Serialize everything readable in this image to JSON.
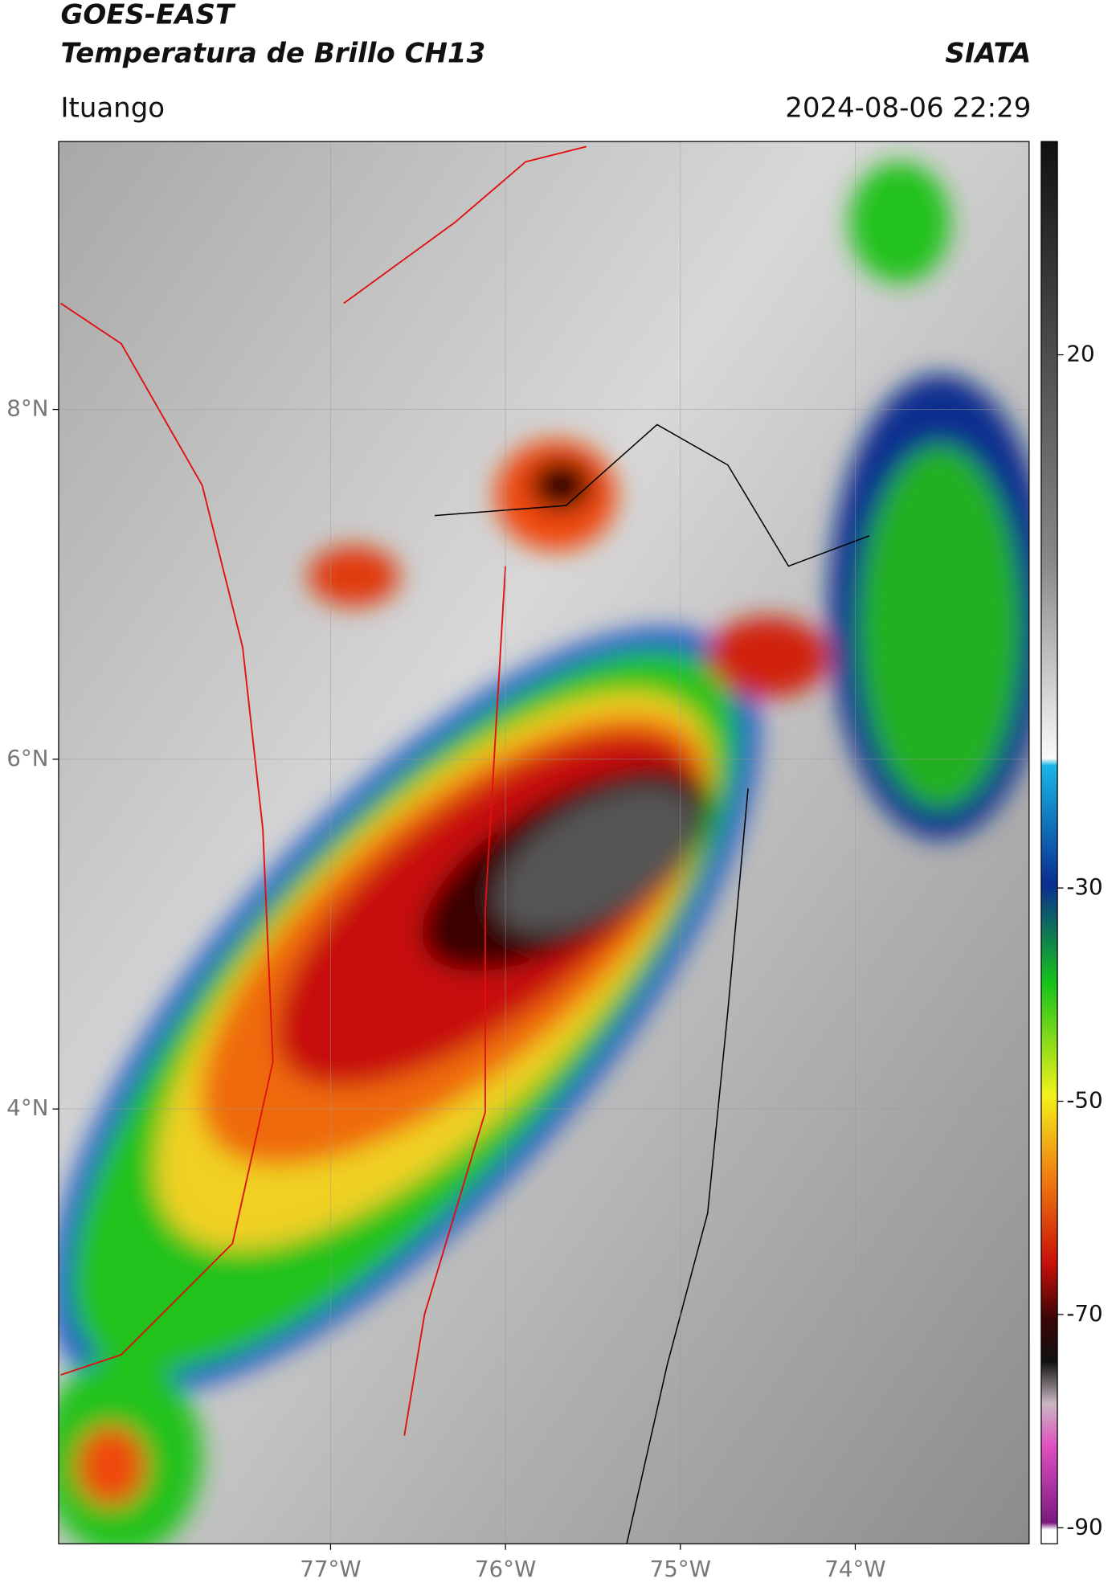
{
  "header": {
    "title_line1": "GOES-EAST",
    "title_line2": "Temperatura de Brillo CH13",
    "source": "SIATA",
    "location": "Ituango",
    "datetime": "2024-08-06 22:29"
  },
  "map": {
    "xlim": [
      -78.555,
      -73.006
    ],
    "ylim": [
      1.514,
      9.532
    ],
    "xticks": [
      {
        "value": -77,
        "label": "77°W"
      },
      {
        "value": -76,
        "label": "76°W"
      },
      {
        "value": -75,
        "label": "75°W"
      },
      {
        "value": -74,
        "label": "74°W"
      }
    ],
    "yticks": [
      {
        "value": 4,
        "label": "4°N"
      },
      {
        "value": 6,
        "label": "6°N"
      },
      {
        "value": 8,
        "label": "8°N"
      }
    ],
    "grid": true
  },
  "colorbar": {
    "ylim": [
      -91.5,
      40
    ],
    "yticks": [
      -90,
      -70,
      -50,
      -30,
      20
    ]
  }
}
